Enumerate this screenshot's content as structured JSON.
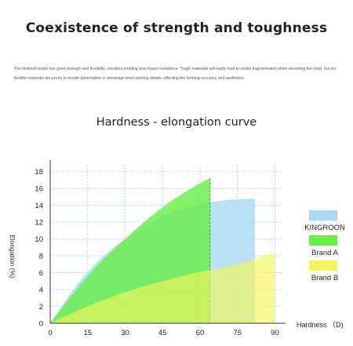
{
  "header": {
    "title": "Coexistence of strength and toughness",
    "description": "The finished model has good strength and flexibility, excellent molding and impact resistance. Tough materials will easily lead to model fragmentation when shoveling the mold, but too flexible materials are prone to tensile deformation or breakage when printing details, affecting the forming accuracy and aesthetics."
  },
  "chart_data": {
    "type": "area",
    "title": "Hardness - elongation curve",
    "xlabel": "Hardness （D)",
    "ylabel": "Elongation (%)",
    "xlim": [
      0,
      93
    ],
    "ylim": [
      0,
      19
    ],
    "xticks": [
      0,
      15,
      30,
      45,
      60,
      75,
      90
    ],
    "yticks": [
      0,
      2,
      4,
      6,
      8,
      10,
      12,
      14,
      16,
      18
    ],
    "grid": true,
    "legend_position": "right",
    "series": [
      {
        "name": "KINGROON",
        "color": "#a8d8f0",
        "x": [
          0,
          10,
          20,
          30,
          40,
          50,
          60,
          70,
          82
        ],
        "y": [
          0,
          4.3,
          7.6,
          10.0,
          11.9,
          13.2,
          14.1,
          14.6,
          14.8
        ]
      },
      {
        "name": "Brand A",
        "color": "#66ee44",
        "x": [
          0,
          10,
          20,
          30,
          40,
          50,
          60,
          64
        ],
        "y": [
          0,
          3.8,
          7.2,
          10.0,
          12.6,
          14.8,
          16.6,
          17.2
        ]
      },
      {
        "name": "Brand B",
        "color": "#f4f55a",
        "x": [
          0,
          15,
          30,
          45,
          60,
          75,
          90
        ],
        "y": [
          0,
          2.0,
          3.7,
          5.0,
          6.1,
          7.0,
          8.4
        ]
      }
    ]
  },
  "legend": [
    {
      "label": "KINGROON",
      "color": "#a8d8f0"
    },
    {
      "label": "Brand A",
      "color": "#66ee44"
    },
    {
      "label": "Brand B",
      "color": "#f4f55a"
    }
  ]
}
